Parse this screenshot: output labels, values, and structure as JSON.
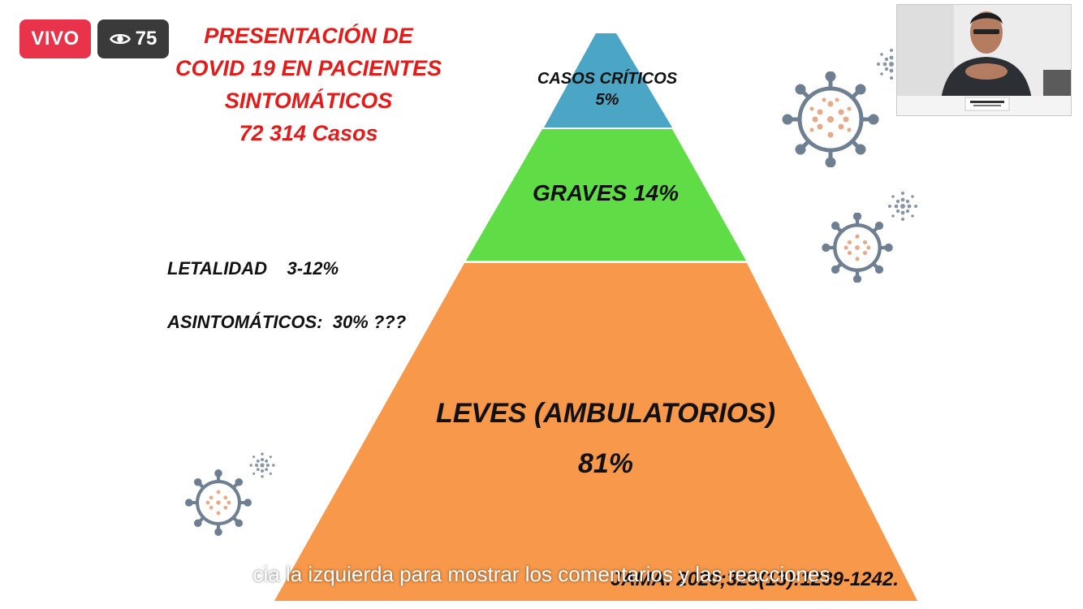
{
  "live": {
    "label": "VIVO"
  },
  "viewers": {
    "count": "75",
    "icon": "eye-icon"
  },
  "slide": {
    "title_lines": [
      "PRESENTACIÓN DE",
      "COVID 19 EN PACIENTES",
      "SINTOMÁTICOS",
      "72 314 Casos"
    ],
    "pyramid": {
      "criticos": {
        "label": "CASOS CRÍTICOS",
        "value": "5%",
        "color": "#4ba5c4"
      },
      "graves": {
        "label": "GRAVES 14%",
        "color": "#5fdc46"
      },
      "leves": {
        "label": "LEVES (AMBULATORIOS)",
        "value": "81%",
        "color": "#f7984a"
      }
    },
    "letalidad": "LETALIDAD    3-12%",
    "asintomaticos": "ASINTOMÁTICOS:  30% ???",
    "citation": "JAMA. 2020;323(13):1239-1242."
  },
  "caption": "cia la izquierda para mostrar los comentarios y las reacciones",
  "colors": {
    "live_bg": "#e8334a",
    "viewer_bg": "#3a3a3a",
    "title_red": "#e21b1b",
    "virus_gray": "#6f7f92",
    "virus_dots": "#e6a989"
  },
  "presenter_video": {
    "icon": "presenter-video-icon"
  }
}
